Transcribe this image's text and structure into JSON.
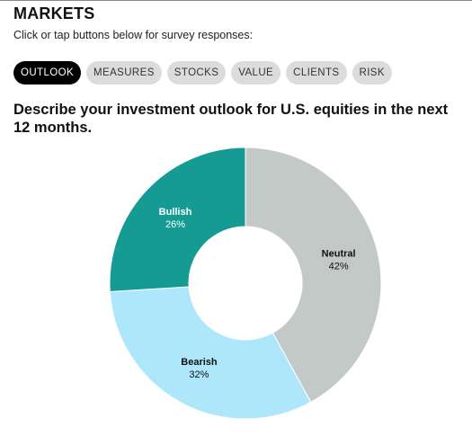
{
  "header": {
    "title": "MARKETS",
    "instructions": "Click or tap buttons below for survey responses:"
  },
  "tabs": [
    {
      "label": "OUTLOOK",
      "active": true
    },
    {
      "label": "MEASURES",
      "active": false
    },
    {
      "label": "STOCKS",
      "active": false
    },
    {
      "label": "VALUE",
      "active": false
    },
    {
      "label": "CLIENTS",
      "active": false
    },
    {
      "label": "RISK",
      "active": false
    }
  ],
  "question": "Describe your investment outlook for U.S. equities in the next 12 months.",
  "chart_data": {
    "type": "pie",
    "donut": true,
    "title": "",
    "slices": [
      {
        "label": "Neutral",
        "value": 42,
        "display": "42%",
        "color": "#c3c9c6",
        "label_color": "#111111"
      },
      {
        "label": "Bearish",
        "value": 32,
        "display": "32%",
        "color": "#aee7fb",
        "label_color": "#111111"
      },
      {
        "label": "Bullish",
        "value": 26,
        "display": "26%",
        "color": "#159b94",
        "label_color": "#ffffff"
      }
    ]
  }
}
